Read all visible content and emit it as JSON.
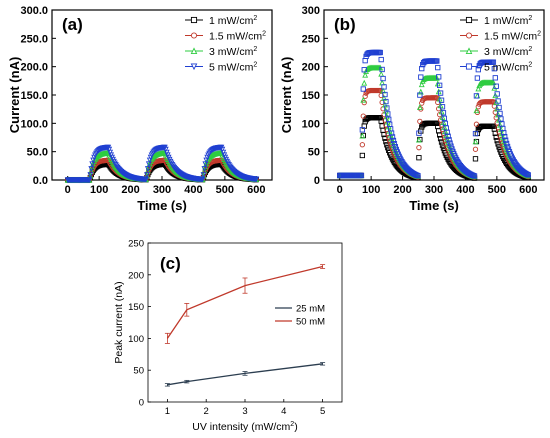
{
  "chart_data": [
    {
      "panel_label": "(a)",
      "type": "scatter",
      "xlabel": "Time (s)",
      "ylabel": "Current (nA)",
      "xlim": [
        -50,
        650
      ],
      "ylim": [
        0,
        300
      ],
      "xticks": [
        0,
        100,
        200,
        300,
        400,
        500,
        600
      ],
      "yticks": [
        0,
        50,
        100,
        150,
        200,
        250,
        300
      ],
      "ytick_labels": [
        "0.0",
        "50.0",
        "100.0",
        "150.0",
        "200.0",
        "250.0",
        "300.0"
      ],
      "legend_position": "top-right",
      "pulses": {
        "on_times": [
          70,
          250,
          430
        ],
        "duration": 60,
        "rise_tau": 12,
        "decay_tau": 30,
        "baseline_start": 0,
        "baseline_end_time": 600
      },
      "series": [
        {
          "name": "1 mW/cm",
          "superscript": "2",
          "color": "#000000",
          "marker": "square",
          "peak": 28
        },
        {
          "name": "1.5 mW/cm",
          "superscript": "2",
          "color": "#c0392b",
          "marker": "circle",
          "peak": 35
        },
        {
          "name": "3 mW/cm",
          "superscript": "2",
          "color": "#2ecc40",
          "marker": "triangle-up",
          "peak": 48
        },
        {
          "name": "5 mW/cm",
          "superscript": "2",
          "color": "#1f3fd1",
          "marker": "triangle-down",
          "peak": 58
        }
      ]
    },
    {
      "panel_label": "(b)",
      "type": "scatter",
      "xlabel": "Time (s)",
      "ylabel": "Current (nA)",
      "xlim": [
        -50,
        650
      ],
      "ylim": [
        0,
        300
      ],
      "xticks": [
        0,
        100,
        200,
        300,
        400,
        500,
        600
      ],
      "yticks": [
        0,
        50,
        100,
        150,
        200,
        250,
        300
      ],
      "ytick_labels": [
        "0",
        "50",
        "100",
        "150",
        "200",
        "250",
        "300"
      ],
      "legend_position": "top-right",
      "pulses": {
        "on_times": [
          70,
          250,
          430
        ],
        "duration": 60,
        "rise_tau": 4,
        "decay_tau": 35,
        "baseline_start": 8,
        "baseline_end_time": 600
      },
      "series": [
        {
          "name": "1 mW/cm",
          "superscript": "2",
          "color": "#000000",
          "marker": "square",
          "peaks": [
            110,
            100,
            95
          ]
        },
        {
          "name": "1.5 mW/cm",
          "superscript": "2",
          "color": "#c0392b",
          "marker": "circle",
          "peaks": [
            158,
            145,
            138
          ]
        },
        {
          "name": "3 mW/cm",
          "superscript": "2",
          "color": "#2ecc40",
          "marker": "triangle-up",
          "peaks": [
            198,
            180,
            172
          ]
        },
        {
          "name": "5 mW/cm",
          "superscript": "2",
          "color": "#1f3fd1",
          "marker": "square",
          "peaks": [
            225,
            210,
            208
          ]
        }
      ]
    },
    {
      "panel_label": "(c)",
      "type": "line",
      "xlabel": "UV intensity (mW/cm",
      "xlabel_sup": "2",
      "xlabel_end": ")",
      "ylabel": "Peak current (nA)",
      "xlim": [
        0.5,
        5.5
      ],
      "ylim": [
        0,
        250
      ],
      "xticks": [
        1,
        2,
        3,
        4,
        5
      ],
      "yticks": [
        0,
        50,
        100,
        150,
        200,
        250
      ],
      "legend_position": "center-right",
      "series": [
        {
          "name": "25 mM",
          "color": "#2c3e50",
          "x": [
            1,
            1.5,
            3,
            5
          ],
          "y": [
            27,
            32,
            45,
            60
          ],
          "err": [
            2,
            2,
            3,
            2
          ]
        },
        {
          "name": "50 mM",
          "color": "#c0392b",
          "x": [
            1,
            1.5,
            3,
            5
          ],
          "y": [
            100,
            145,
            183,
            213
          ],
          "err": [
            8,
            10,
            12,
            3
          ]
        }
      ]
    }
  ]
}
